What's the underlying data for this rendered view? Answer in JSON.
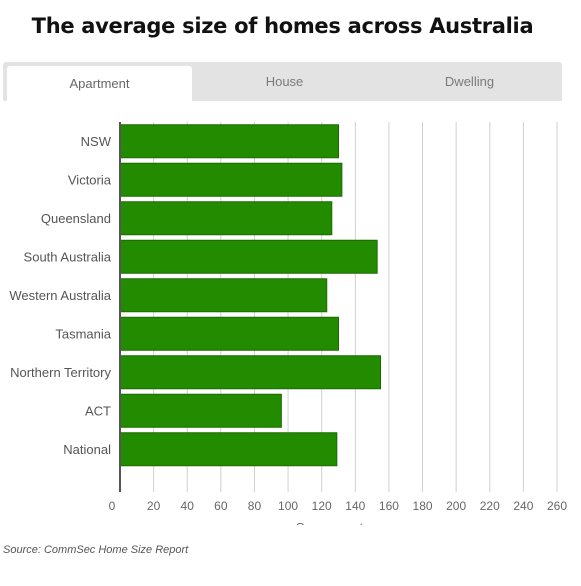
{
  "title": "The average size of homes across Australia",
  "tabs": [
    {
      "label": "Apartment",
      "active": true
    },
    {
      "label": "House",
      "active": false
    },
    {
      "label": "Dwelling",
      "active": false
    }
  ],
  "source": "Source: CommSec Home Size Report",
  "colors": {
    "bar": "#228B00",
    "bar_stroke": "#1a6b00",
    "grid": "#d0d0d0",
    "axis": "#555555"
  },
  "chart_data": {
    "type": "bar",
    "orientation": "horizontal",
    "categories": [
      "NSW",
      "Victoria",
      "Queensland",
      "South Australia",
      "Western Australia",
      "Tasmania",
      "Northern Territory",
      "ACT",
      "National"
    ],
    "values": [
      130,
      132,
      126,
      153,
      123,
      130,
      155,
      96,
      129
    ],
    "xlabel": "Square metres",
    "xlim": [
      0,
      260
    ],
    "xticks": [
      0,
      20,
      40,
      60,
      80,
      100,
      120,
      140,
      160,
      180,
      200,
      220,
      240,
      260
    ],
    "grid": true
  }
}
